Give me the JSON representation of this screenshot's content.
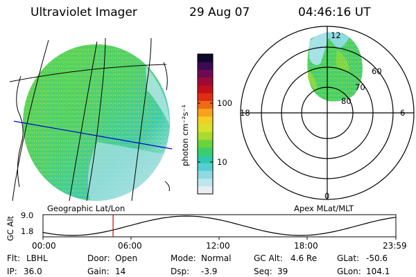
{
  "header": {
    "instrument": "Ultraviolet Imager",
    "date": "29 Aug 07",
    "time": "04:46:16 UT"
  },
  "geo_panel": {
    "label": "Geographic Lat/Lon"
  },
  "apex_panel": {
    "label": "Apex MLat/MLT",
    "mlt_labels": [
      "12",
      "18",
      "6",
      "0"
    ],
    "lat_labels": [
      "60",
      "70",
      "80"
    ]
  },
  "colorbar": {
    "unit_label": "photon cm⁻²s⁻¹",
    "ticks": [
      "100",
      "10"
    ],
    "scale": "log",
    "colors": [
      "#e6eef2",
      "#bfe6ea",
      "#8fd9e0",
      "#55cfd3",
      "#2fc9a9",
      "#3bcf6a",
      "#6ad43a",
      "#a7dc2f",
      "#d7e12c",
      "#f3cf26",
      "#f7a21c",
      "#ef6a16",
      "#df2d12",
      "#c20f1a",
      "#9c0a35",
      "#6e0a55",
      "#3c0a55",
      "#10082a"
    ]
  },
  "altitude_plot": {
    "ylabel": "GC Alt",
    "yticks": [
      "9.0",
      "1.8"
    ],
    "xticks": [
      "00:00",
      "06:00",
      "12:00",
      "18:00",
      "23:59"
    ],
    "marker_time": "04:46",
    "marker_color": "#cc0000"
  },
  "footer": {
    "row1": [
      {
        "label": "Flt:",
        "value": "LBHL"
      },
      {
        "label": "Door:",
        "value": "Open"
      },
      {
        "label": "Mode:",
        "value": "Normal"
      },
      {
        "label": "GC Alt:",
        "value": "4.6 Re"
      },
      {
        "label": "GLat:",
        "value": "-50.6"
      }
    ],
    "row2": [
      {
        "label": "IP:",
        "value": "36.0"
      },
      {
        "label": "Gain:",
        "value": "14"
      },
      {
        "label": "Dsp:",
        "value": "-3.9"
      },
      {
        "label": "Seq:",
        "value": "39"
      },
      {
        "label": "GLon:",
        "value": "104.1"
      }
    ]
  }
}
